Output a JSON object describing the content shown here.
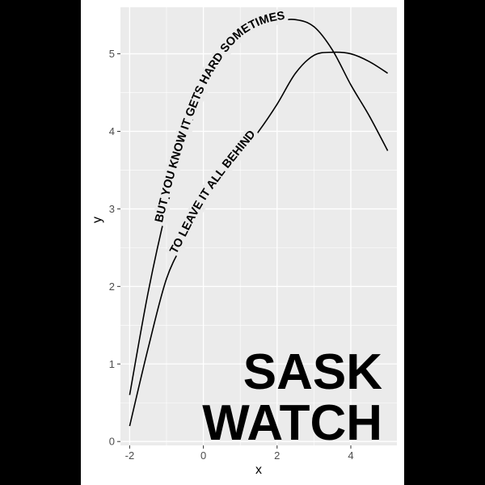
{
  "chart_data": {
    "type": "line",
    "xlabel": "x",
    "ylabel": "y",
    "xlim": [
      -2.25,
      5.25
    ],
    "ylim": [
      -0.05,
      5.6
    ],
    "x_ticks": [
      -2,
      0,
      2,
      4
    ],
    "x_tick_labels": [
      "-2",
      "0",
      "2",
      "4"
    ],
    "y_ticks": [
      0,
      1,
      2,
      3,
      4,
      5
    ],
    "y_tick_labels": [
      "0",
      "1",
      "2",
      "3",
      "4",
      "5"
    ],
    "grid": true,
    "background_color": "#ebebeb",
    "grid_color": "#ffffff",
    "line_color": "#000000",
    "series": [
      {
        "label_text": "BUT YOU KNOW IT GETS HARD SOMETIMES",
        "x": [
          -2,
          -1.5,
          -1,
          -0.5,
          0,
          0.5,
          1,
          1.5,
          2,
          2.5,
          3,
          3.5,
          4,
          4.5,
          5
        ],
        "y": [
          0.6,
          1.92,
          3.0,
          3.86,
          4.5,
          4.92,
          5.2,
          5.35,
          5.42,
          5.44,
          5.35,
          5.05,
          4.6,
          4.2,
          3.75
        ]
      },
      {
        "label_text": "TO LEAVE IT ALL BEHIND",
        "x": [
          -2,
          -1.5,
          -1,
          -0.5,
          0,
          0.5,
          1,
          1.5,
          2,
          2.5,
          3,
          3.5,
          4,
          4.5,
          5
        ],
        "y": [
          0.2,
          1.2,
          2.1,
          2.6,
          3.05,
          3.4,
          3.7,
          4.0,
          4.35,
          4.75,
          4.98,
          5.02,
          5.0,
          4.9,
          4.75
        ]
      }
    ]
  },
  "overlay": {
    "line1": "SASK",
    "line2": "WATCH"
  }
}
